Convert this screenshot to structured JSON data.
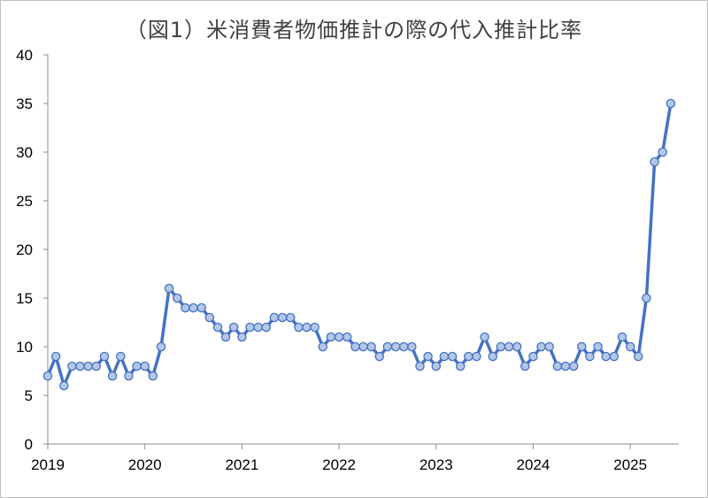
{
  "chart_data": {
    "type": "line",
    "title": "（図1）米消費者物価推計の際の代入推計比率",
    "xlabel": "",
    "ylabel": "",
    "ylim": [
      0,
      40
    ],
    "yticks": [
      0,
      5,
      10,
      15,
      20,
      25,
      30,
      35,
      40
    ],
    "xlim": [
      "2019-01",
      "2025-07"
    ],
    "xticks": [
      "2019",
      "2020",
      "2021",
      "2022",
      "2023",
      "2024",
      "2025"
    ],
    "grid": false,
    "legend": "none",
    "colors": {
      "line": "#4472c4",
      "marker_fill": "#b4c7e7",
      "marker_edge": "#4472c4"
    },
    "series": [
      {
        "x": [
          "2019-01",
          "2019-02",
          "2019-03",
          "2019-04",
          "2019-05",
          "2019-06",
          "2019-07",
          "2019-08",
          "2019-09",
          "2019-10",
          "2019-11",
          "2019-12",
          "2020-01",
          "2020-02",
          "2020-03",
          "2020-04",
          "2020-05",
          "2020-06",
          "2020-07",
          "2020-08",
          "2020-09",
          "2020-10",
          "2020-11",
          "2020-12",
          "2021-01",
          "2021-02",
          "2021-03",
          "2021-04",
          "2021-05",
          "2021-06",
          "2021-07",
          "2021-08",
          "2021-09",
          "2021-10",
          "2021-11",
          "2021-12",
          "2022-01",
          "2022-02",
          "2022-03",
          "2022-04",
          "2022-05",
          "2022-06",
          "2022-07",
          "2022-08",
          "2022-09",
          "2022-10",
          "2022-11",
          "2022-12",
          "2023-01",
          "2023-02",
          "2023-03",
          "2023-04",
          "2023-05",
          "2023-06",
          "2023-07",
          "2023-08",
          "2023-09",
          "2023-10",
          "2023-11",
          "2023-12",
          "2024-01",
          "2024-02",
          "2024-03",
          "2024-04",
          "2024-05",
          "2024-06",
          "2024-07",
          "2024-08",
          "2024-09",
          "2024-10",
          "2024-11",
          "2024-12",
          "2025-01",
          "2025-02",
          "2025-03",
          "2025-04",
          "2025-05",
          "2025-06"
        ],
        "values": [
          7,
          9,
          6,
          8,
          8,
          8,
          8,
          9,
          7,
          9,
          7,
          8,
          8,
          7,
          10,
          16,
          15,
          14,
          14,
          14,
          13,
          12,
          11,
          12,
          11,
          12,
          12,
          12,
          13,
          13,
          13,
          12,
          12,
          12,
          10,
          11,
          11,
          11,
          10,
          10,
          10,
          9,
          10,
          10,
          10,
          10,
          8,
          9,
          8,
          9,
          9,
          8,
          9,
          9,
          11,
          9,
          10,
          10,
          10,
          8,
          9,
          10,
          10,
          8,
          8,
          8,
          10,
          9,
          10,
          9,
          9,
          11,
          10,
          9,
          15,
          29,
          30,
          35
        ]
      }
    ]
  }
}
